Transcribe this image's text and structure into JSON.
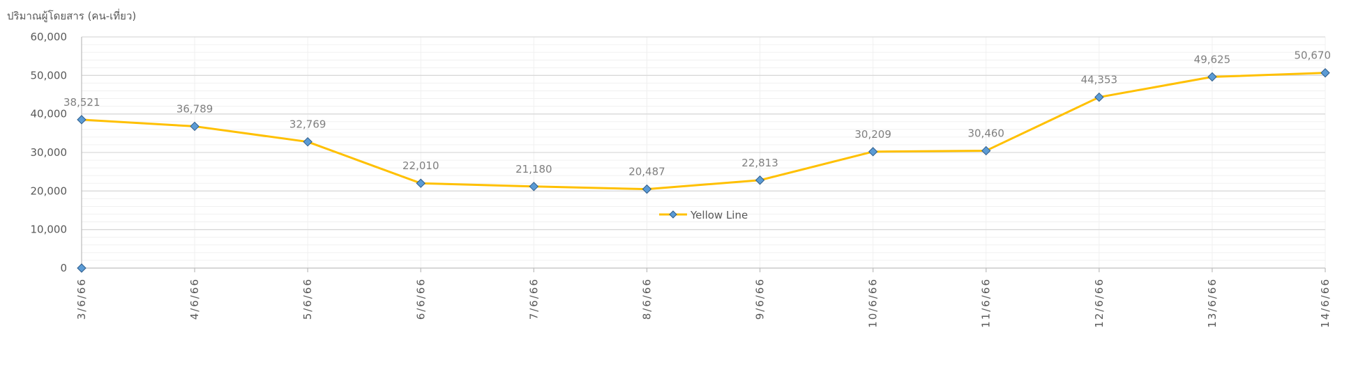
{
  "chart_data": {
    "type": "line",
    "ylabel": "ปริมาณผู้โดยสาร (คน-เที่ยว)",
    "categories": [
      "3/6/66",
      "4/6/66",
      "5/6/66",
      "6/6/66",
      "7/6/66",
      "8/6/66",
      "9/6/66",
      "10/6/66",
      "11/6/66",
      "12/6/66",
      "13/6/66",
      "14/6/66"
    ],
    "series": [
      {
        "name": "Yellow Line",
        "values": [
          38521,
          36789,
          32769,
          22010,
          21180,
          20487,
          22813,
          30209,
          30460,
          44353,
          49625,
          50670
        ],
        "labels": [
          "38,521",
          "36,789",
          "32,769",
          "22,010",
          "21,180",
          "20,487",
          "22,813",
          "30,209",
          "30,460",
          "44,353",
          "49,625",
          "50,670"
        ]
      }
    ],
    "extra_point": {
      "category": "3/6/66",
      "value": 0
    },
    "yticks": [
      "0",
      "10,000",
      "20,000",
      "30,000",
      "40,000",
      "50,000",
      "60,000"
    ],
    "ylim": [
      0,
      60000
    ],
    "grid": true,
    "legend_position": "center",
    "colors": {
      "line": "#FFC000",
      "marker_fill": "#5B9BD5",
      "marker_stroke": "#2E5C8A",
      "grid_major": "#D9D9D9",
      "grid_minor": "#F0F0F0",
      "axis": "#BFBFBF",
      "text": "#595959",
      "data_label": "#7F7F7F"
    }
  }
}
